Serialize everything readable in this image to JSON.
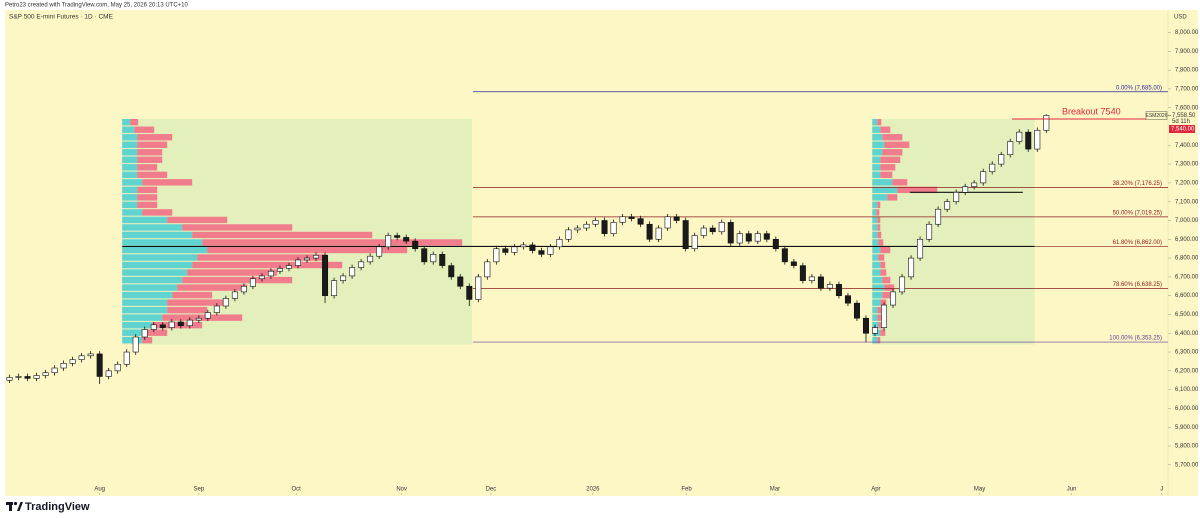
{
  "attribution": "Petro23 created with TradingView.com, May 25, 2026 20:13 UTC+10",
  "brand": "TradingView",
  "chart_data": {
    "type": "candlestick",
    "title": "S&P 500 E-mini Futures · 1D · CME",
    "currency": "USD",
    "up_color": "#ffffff",
    "down_color": "#1a1a1a",
    "open": [
      6150,
      6165,
      6170,
      6160,
      6175,
      6190,
      6215,
      6240,
      6260,
      6280,
      6290,
      6170,
      6200,
      6235,
      6300,
      6380,
      6420,
      6445,
      6430,
      6460,
      6440,
      6470,
      6480,
      6510,
      6545,
      6585,
      6620,
      6650,
      6690,
      6705,
      6730,
      6745,
      6760,
      6790,
      6800,
      6815,
      6600,
      6680,
      6705,
      6750,
      6780,
      6810,
      6860,
      6920,
      6910,
      6890,
      6850,
      6780,
      6820,
      6760,
      6700,
      6650,
      6580,
      6700,
      6780,
      6850,
      6830,
      6860,
      6870,
      6840,
      6820,
      6860,
      6900,
      6950,
      6960,
      6980,
      7000,
      6930,
      6990,
      7020,
      7010,
      6980,
      6900,
      6960,
      7020,
      7000,
      6850,
      6920,
      6960,
      6940,
      6990,
      6880,
      6930,
      6890,
      6930,
      6900,
      6850,
      6780,
      6760,
      6680,
      6700,
      6640,
      6660,
      6600,
      6560,
      6480,
      6400,
      6430,
      6550,
      6620,
      6700,
      6800,
      6900,
      6980,
      7060,
      7100,
      7150,
      7180,
      7200,
      7260,
      7300,
      7350,
      7420,
      7470,
      7380,
      7480
    ],
    "high": [
      6180,
      6185,
      6185,
      6190,
      6205,
      6230,
      6255,
      6275,
      6295,
      6305,
      6305,
      6215,
      6250,
      6315,
      6395,
      6435,
      6460,
      6460,
      6475,
      6475,
      6485,
      6495,
      6525,
      6560,
      6600,
      6635,
      6665,
      6705,
      6720,
      6745,
      6760,
      6775,
      6805,
      6815,
      6830,
      6830,
      6695,
      6720,
      6765,
      6795,
      6825,
      6875,
      6935,
      6935,
      6925,
      6905,
      6865,
      6835,
      6835,
      6775,
      6715,
      6665,
      6715,
      6795,
      6865,
      6865,
      6875,
      6885,
      6885,
      6855,
      6875,
      6915,
      6965,
      6975,
      6995,
      7015,
      7015,
      7005,
      7035,
      7035,
      7025,
      6995,
      6975,
      7035,
      7035,
      7015,
      6935,
      6975,
      6975,
      7005,
      7005,
      6945,
      6945,
      6945,
      6945,
      6915,
      6865,
      6795,
      6775,
      6715,
      6715,
      6675,
      6675,
      6615,
      6575,
      6495,
      6445,
      6565,
      6635,
      6715,
      6815,
      6915,
      6995,
      7075,
      7115,
      7165,
      7195,
      7215,
      7275,
      7315,
      7365,
      7435,
      7485,
      7485,
      7495,
      7565
    ],
    "low": [
      6135,
      6150,
      6145,
      6145,
      6160,
      6175,
      6200,
      6225,
      6245,
      6265,
      6130,
      6155,
      6185,
      6220,
      6285,
      6365,
      6405,
      6415,
      6415,
      6425,
      6425,
      6455,
      6465,
      6495,
      6530,
      6570,
      6605,
      6635,
      6675,
      6690,
      6715,
      6730,
      6745,
      6775,
      6785,
      6560,
      6585,
      6665,
      6690,
      6735,
      6765,
      6795,
      6845,
      6895,
      6875,
      6835,
      6765,
      6765,
      6745,
      6685,
      6635,
      6545,
      6565,
      6685,
      6765,
      6815,
      6815,
      6845,
      6825,
      6805,
      6805,
      6845,
      6885,
      6935,
      6945,
      6965,
      6915,
      6915,
      6975,
      6995,
      6965,
      6885,
      6885,
      6945,
      6985,
      6835,
      6835,
      6905,
      6925,
      6925,
      6865,
      6865,
      6875,
      6875,
      6885,
      6835,
      6765,
      6745,
      6665,
      6665,
      6625,
      6625,
      6585,
      6545,
      6465,
      6353,
      6385,
      6415,
      6535,
      6605,
      6685,
      6785,
      6885,
      6965,
      7045,
      7085,
      7135,
      7165,
      7185,
      7245,
      7285,
      7335,
      7405,
      7365,
      7365,
      7465
    ],
    "close": [
      6165,
      6170,
      6160,
      6175,
      6190,
      6215,
      6240,
      6260,
      6280,
      6290,
      6170,
      6200,
      6235,
      6300,
      6380,
      6420,
      6445,
      6430,
      6460,
      6440,
      6470,
      6480,
      6510,
      6545,
      6585,
      6620,
      6650,
      6690,
      6705,
      6730,
      6745,
      6760,
      6790,
      6800,
      6815,
      6600,
      6680,
      6705,
      6750,
      6780,
      6810,
      6860,
      6920,
      6910,
      6890,
      6850,
      6780,
      6820,
      6760,
      6700,
      6650,
      6580,
      6700,
      6780,
      6850,
      6830,
      6860,
      6870,
      6840,
      6820,
      6860,
      6900,
      6950,
      6960,
      6980,
      7000,
      6930,
      6990,
      7020,
      7010,
      6980,
      6900,
      6960,
      7020,
      7000,
      6850,
      6920,
      6960,
      6940,
      6990,
      6880,
      6930,
      6890,
      6930,
      6900,
      6850,
      6780,
      6760,
      6680,
      6700,
      6640,
      6660,
      6600,
      6560,
      6480,
      6400,
      6430,
      6550,
      6620,
      6700,
      6800,
      6900,
      6980,
      7060,
      7100,
      7150,
      7180,
      7200,
      7260,
      7300,
      7350,
      7420,
      7470,
      7380,
      7480,
      7558.5
    ],
    "xlim": [
      -0.5,
      128.5
    ],
    "xticks": [
      {
        "value": 10,
        "label": "Aug"
      },
      {
        "value": 21,
        "label": "Sep"
      },
      {
        "value": 31.8,
        "label": "Oct"
      },
      {
        "value": 43.5,
        "label": "Nov"
      },
      {
        "value": 53.4,
        "label": "Dec"
      },
      {
        "value": 64.7,
        "label": "2026"
      },
      {
        "value": 75.1,
        "label": "Feb"
      },
      {
        "value": 84.9,
        "label": "Mar"
      },
      {
        "value": 96.1,
        "label": "Apr"
      },
      {
        "value": 107.6,
        "label": "May"
      },
      {
        "value": 117.8,
        "label": "Jun"
      },
      {
        "value": 127.8,
        "label": "J"
      }
    ],
    "ylim": [
      5550,
      8120
    ],
    "yticks": [
      {
        "value": 5700,
        "label": "5,700.00"
      },
      {
        "value": 5800,
        "label": "5,800.00"
      },
      {
        "value": 5900,
        "label": "5,900.00"
      },
      {
        "value": 6000,
        "label": "6,000.00"
      },
      {
        "value": 6100,
        "label": "6,100.00"
      },
      {
        "value": 6200,
        "label": "6,200.00"
      },
      {
        "value": 6300,
        "label": "6,300.00"
      },
      {
        "value": 6400,
        "label": "6,400.00"
      },
      {
        "value": 6500,
        "label": "6,500.00"
      },
      {
        "value": 6600,
        "label": "6,600.00"
      },
      {
        "value": 6700,
        "label": "6,700.00"
      },
      {
        "value": 6800,
        "label": "6,800.00"
      },
      {
        "value": 6900,
        "label": "6,900.00"
      },
      {
        "value": 7000,
        "label": "7,000.00"
      },
      {
        "value": 7100,
        "label": "7,100.00"
      },
      {
        "value": 7200,
        "label": "7,200.00"
      },
      {
        "value": 7300,
        "label": "7,300.00"
      },
      {
        "value": 7400,
        "label": "7,400.00"
      },
      {
        "value": 7600,
        "label": "7,600.00"
      },
      {
        "value": 7700,
        "label": "7,700.00"
      },
      {
        "value": 7800,
        "label": "7,800.00"
      },
      {
        "value": 7900,
        "label": "7,900.00"
      },
      {
        "value": 8000,
        "label": "8,000.00"
      }
    ],
    "fib_from": 51.4,
    "fib_levels": [
      {
        "label": "0.00% (7,685.00)",
        "value": 7685,
        "color": "#2b2b9c"
      },
      {
        "label": "38.20% (7,176.25)",
        "value": 7176.25,
        "color": "#8b1c1c"
      },
      {
        "label": "50.00% (7,019.25)",
        "value": 7019.25,
        "color": "#8b1c1c"
      },
      {
        "label": "61.80% (6,862.00)",
        "value": 6862,
        "color": "#8b1c1c"
      },
      {
        "label": "78.60% (6,638.25)",
        "value": 6638.25,
        "color": "#8b1c1c"
      },
      {
        "label": "100.00% (6,353.25)",
        "value": 6353.25,
        "color": "#6a3a9c"
      }
    ],
    "level_lines": [
      {
        "value": 6862,
        "from": 12.5,
        "to": 113.7
      },
      {
        "value": 7150,
        "from": 99.9,
        "to": 112.4
      }
    ],
    "breakout": {
      "label": "Breakout 7540",
      "value": 7540,
      "from": 111.2,
      "to": 126.2,
      "color": "#e0283c"
    },
    "price_tags": {
      "symbol": "ESM2026",
      "last": {
        "value": 7558.5,
        "label": "7,558.50"
      },
      "countdown": "5d 11h",
      "alert": {
        "value": 7540,
        "label": "7,540.00"
      }
    },
    "profile_bins": [
      6340,
      6380,
      6420,
      6460,
      6500,
      6540,
      6580,
      6620,
      6660,
      6700,
      6740,
      6780,
      6820,
      6860,
      6900,
      6940,
      6980,
      7020,
      7060,
      7100,
      7140,
      7180,
      7220,
      7260,
      7300,
      7340,
      7380,
      7420,
      7460,
      7500,
      7540
    ],
    "up_volume_color": "#5fd3cf",
    "down_volume_color": "#f07c8c",
    "volume_profiles": [
      {
        "from": 12.5,
        "to": 51.3,
        "up": [
          20,
          25,
          30,
          40,
          45,
          45,
          50,
          55,
          60,
          65,
          70,
          75,
          85,
          80,
          70,
          60,
          45,
          20,
          15,
          15,
          15,
          20,
          15,
          15,
          15,
          15,
          15,
          15,
          12,
          8
        ],
        "down": [
          10,
          20,
          50,
          80,
          40,
          60,
          40,
          70,
          110,
          90,
          150,
          130,
          200,
          260,
          180,
          110,
          60,
          30,
          20,
          20,
          20,
          50,
          30,
          20,
          25,
          25,
          30,
          35,
          20,
          8
        ]
      },
      {
        "from": 95.7,
        "to": 113.7,
        "up": [
          5,
          8,
          6,
          5,
          5,
          8,
          10,
          12,
          10,
          8,
          8,
          6,
          8,
          6,
          5,
          5,
          5,
          4,
          5,
          15,
          25,
          20,
          8,
          8,
          8,
          10,
          12,
          10,
          8,
          5
        ],
        "down": [
          3,
          5,
          5,
          4,
          4,
          6,
          8,
          10,
          8,
          6,
          5,
          6,
          10,
          5,
          4,
          3,
          3,
          3,
          3,
          10,
          40,
          15,
          12,
          15,
          20,
          20,
          25,
          20,
          10,
          4
        ]
      }
    ]
  }
}
